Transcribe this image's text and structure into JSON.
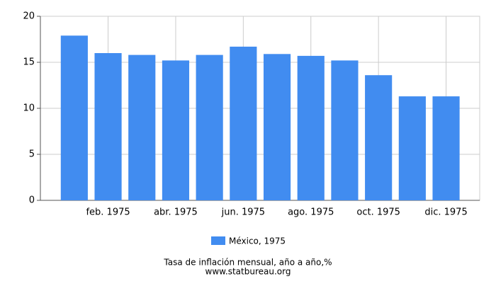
{
  "chart_data": {
    "type": "bar",
    "title": "Tasa de inflación mensual, año a año,%",
    "source": "www.statbureau.org",
    "categories": [
      null,
      "feb. 1975",
      null,
      "abr. 1975",
      null,
      "jun. 1975",
      null,
      "ago. 1975",
      null,
      "oct. 1975",
      null,
      "dic. 1975"
    ],
    "series": [
      {
        "name": "México, 1975",
        "color": "#418cf0",
        "values": [
          17.9,
          16.0,
          15.8,
          15.2,
          15.8,
          16.7,
          15.9,
          15.7,
          15.2,
          13.6,
          11.3,
          11.3
        ]
      }
    ],
    "ylim": [
      0,
      20
    ],
    "yticks": [
      0,
      5,
      10,
      15,
      20
    ],
    "grid": true
  }
}
